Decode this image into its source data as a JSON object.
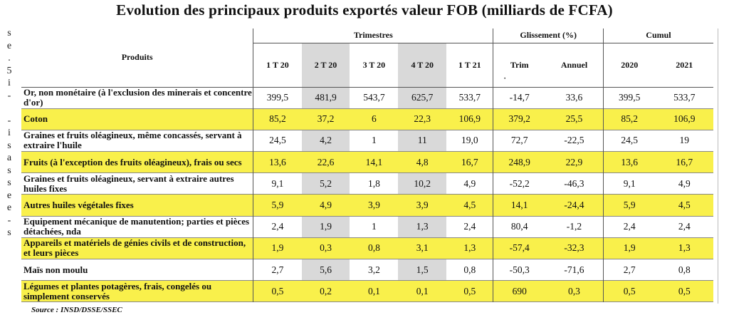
{
  "title": "Evolution des principaux produits exportés valeur FOB (milliards de FCFA)",
  "margin_chars": [
    "s",
    "e",
    ".",
    "5",
    "i",
    "-",
    "",
    "-",
    "i",
    "s",
    "a",
    "s",
    "s",
    "e",
    "e",
    "-",
    "s"
  ],
  "header": {
    "products": "Produits",
    "trimestres": "Trimestres",
    "glissement": "Glissement (%)",
    "cumul": "Cumul",
    "quarters": [
      "1 T 20",
      "2 T 20",
      "3 T 20",
      "4 T 20",
      "1 T 21"
    ],
    "trim": "Trim",
    "trim_dot": "·",
    "annuel": "Annuel",
    "years": [
      "2020",
      "2021"
    ]
  },
  "rows": [
    {
      "product": "Or, non monétaire (à l'exclusion des minerais et concentre d'or)",
      "values": [
        "399,5",
        "481,9",
        "543,7",
        "625,7",
        "533,7",
        "-14,7",
        "33,6",
        "399,5",
        "533,7"
      ]
    },
    {
      "product": "Coton",
      "values": [
        "85,2",
        "37,2",
        "6",
        "22,3",
        "106,9",
        "379,2",
        "25,5",
        "85,2",
        "106,9"
      ]
    },
    {
      "product": "Graines et fruits oléagineux, même concassés, servant à extraire l'huile",
      "values": [
        "24,5",
        "4,2",
        "1",
        "11",
        "19,0",
        "72,7",
        "-22,5",
        "24,5",
        "19"
      ]
    },
    {
      "product": "Fruits (à l'exception des fruits oléagineux), frais ou secs",
      "values": [
        "13,6",
        "22,6",
        "14,1",
        "4,8",
        "16,7",
        "248,9",
        "22,9",
        "13,6",
        "16,7"
      ]
    },
    {
      "product": "Graines et fruits oléagineux, servant à extraire autres huiles fixes",
      "values": [
        "9,1",
        "5,2",
        "1,8",
        "10,2",
        "4,9",
        "-52,2",
        "-46,3",
        "9,1",
        "4,9"
      ]
    },
    {
      "product": "Autres huiles végétales fixes",
      "values": [
        "5,9",
        "4,9",
        "3,9",
        "3,9",
        "4,5",
        "14,1",
        "-24,4",
        "5,9",
        "4,5"
      ]
    },
    {
      "product": "Equipement mécanique de manutention; parties et pièces détachées, nda",
      "values": [
        "2,4",
        "1,9",
        "1",
        "1,3",
        "2,4",
        "80,4",
        "-1,2",
        "2,4",
        "2,4"
      ]
    },
    {
      "product": "Appareils et matériels de génies civils et de construction, et leurs pièces",
      "values": [
        "1,9",
        "0,3",
        "0,8",
        "3,1",
        "1,3",
        "-57,4",
        "-32,3",
        "1,9",
        "1,3"
      ]
    },
    {
      "product": "Maïs non moulu",
      "values": [
        "2,7",
        "5,6",
        "3,2",
        "1,5",
        "0,8",
        "-50,3",
        "-71,6",
        "2,7",
        "0,8"
      ]
    },
    {
      "product": "Légumes et plantes potagères, frais, congelés ou simplement conservés",
      "values": [
        "0,5",
        "0,2",
        "0,1",
        "0,1",
        "0,5",
        "690",
        "0,3",
        "0,5",
        "0,5"
      ]
    }
  ],
  "source": "Source : INSD/DSSE/SSEC"
}
